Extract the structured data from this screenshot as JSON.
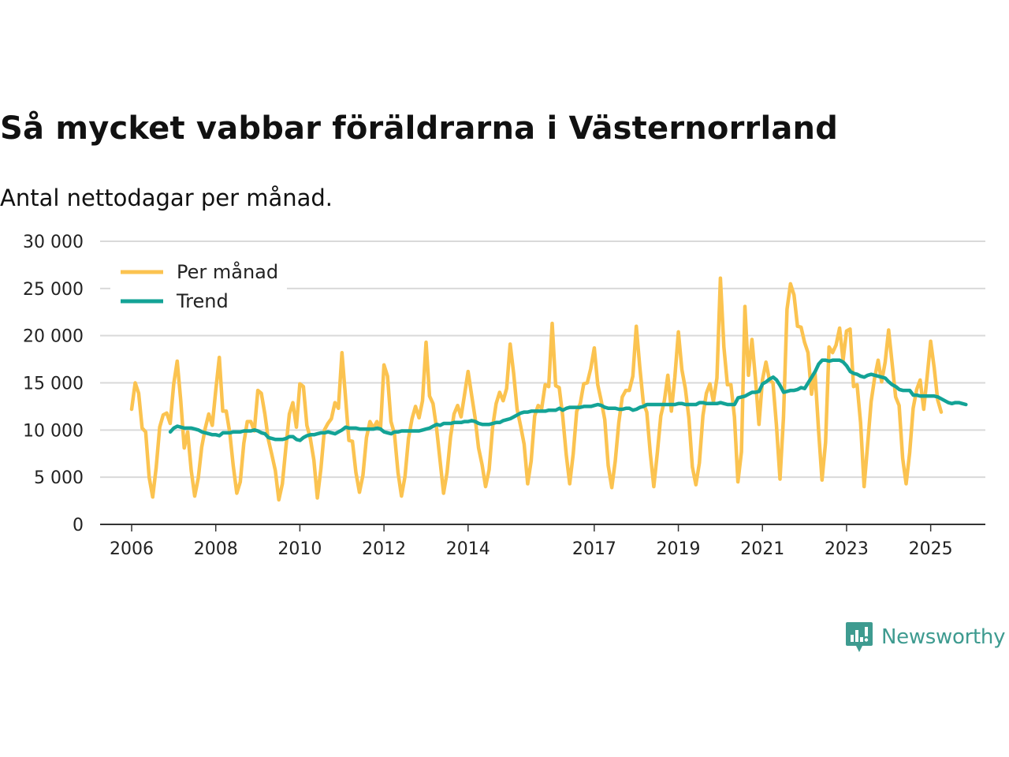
{
  "page": {
    "title": "Så mycket vabbar föräldrarna i Västernorrland",
    "subtitle": "Antal nettodagar per månad.",
    "brand": "Newsworthy"
  },
  "colors": {
    "monthly": "#fbc350",
    "trend": "#13a396",
    "grid": "#d9d9d9",
    "axis": "#333333",
    "brand": "#3e9b90"
  },
  "chart_data": {
    "type": "line",
    "title": "Så mycket vabbar föräldrarna i Västernorrland",
    "subtitle": "Antal nettodagar per månad.",
    "xlabel": "",
    "ylabel": "",
    "ylim": [
      0,
      30000
    ],
    "xlim": [
      2005.25,
      2026.3
    ],
    "yticks": [
      0,
      5000,
      10000,
      15000,
      20000,
      25000,
      30000
    ],
    "ytick_labels": [
      "0",
      "5 000",
      "10 000",
      "15 000",
      "20 000",
      "25 000",
      "30 000"
    ],
    "xticks": [
      2006,
      2008,
      2010,
      2012,
      2014,
      2017,
      2019,
      2021,
      2023,
      2025
    ],
    "xtick_labels": [
      "2006",
      "2008",
      "2010",
      "2012",
      "2014",
      "2017",
      "2019",
      "2021",
      "2023",
      "2025"
    ],
    "legend_position": "top-left",
    "series": [
      {
        "name": "Per månad",
        "start": 2006.0,
        "step_months": 1,
        "values": [
          12200,
          15000,
          13900,
          10200,
          9800,
          5000,
          2900,
          6000,
          10300,
          11600,
          11800,
          10700,
          14900,
          17300,
          13100,
          8100,
          9800,
          5700,
          3000,
          4900,
          8200,
          10200,
          11700,
          10500,
          14200,
          17700,
          12000,
          12000,
          9700,
          6200,
          3300,
          4500,
          8600,
          10900,
          10900,
          9900,
          14200,
          13900,
          11700,
          9000,
          7400,
          5700,
          2600,
          4300,
          8100,
          11700,
          12900,
          10300,
          14900,
          14600,
          10500,
          9100,
          6800,
          2800,
          5900,
          10000,
          10700,
          11200,
          12900,
          12300,
          18200,
          13600,
          8900,
          8800,
          5500,
          3400,
          5200,
          9200,
          10900,
          10200,
          10900,
          10100,
          16900,
          15700,
          10900,
          9600,
          5500,
          3000,
          5100,
          9100,
          11200,
          12500,
          11300,
          13100,
          19300,
          13600,
          12800,
          10200,
          6800,
          3300,
          5500,
          9300,
          11700,
          12600,
          11400,
          13800,
          16200,
          13700,
          11300,
          8100,
          6300,
          4000,
          5800,
          10300,
          12800,
          14000,
          13100,
          14400,
          19100,
          16000,
          12200,
          10400,
          8500,
          4300,
          6700,
          11500,
          12600,
          12300,
          14800,
          14600,
          21300,
          14700,
          14500,
          11500,
          7400,
          4300,
          7500,
          12000,
          12800,
          14900,
          15000,
          16500,
          18700,
          14800,
          13100,
          11100,
          6200,
          3900,
          6700,
          10800,
          13500,
          14200,
          14200,
          15700,
          21000,
          16700,
          12900,
          11900,
          7500,
          4000,
          7600,
          11500,
          13100,
          15800,
          12000,
          15600,
          20400,
          16400,
          14400,
          11300,
          6100,
          4200,
          6500,
          11500,
          13900,
          14900,
          13000,
          15500,
          26100,
          18800,
          14800,
          14800,
          11400,
          4500,
          7700,
          23100,
          15800,
          19600,
          15400,
          10600,
          15300,
          17200,
          15300,
          15000,
          10500,
          4800,
          11300,
          22800,
          25500,
          24300,
          21000,
          20900,
          19300,
          18200,
          13800,
          16100,
          10000,
          4700,
          8700,
          18800,
          18200,
          19000,
          20800,
          17400,
          20500,
          20700,
          14600,
          14800,
          10800,
          4000,
          8400,
          13000,
          15500,
          17400,
          15100,
          17200,
          20600,
          17100,
          13500,
          12600,
          7000,
          4300,
          7600,
          12300,
          14300,
          15300,
          12200,
          15700,
          19400,
          16600,
          13200,
          11900
        ]
      },
      {
        "name": "Trend",
        "start": 2006.92,
        "step_months": 1,
        "values": [
          9800,
          10200,
          10400,
          10300,
          10200,
          10200,
          10200,
          10100,
          10000,
          9800,
          9700,
          9600,
          9500,
          9500,
          9400,
          9700,
          9700,
          9700,
          9800,
          9800,
          9800,
          9900,
          9900,
          9900,
          10000,
          9900,
          9700,
          9600,
          9200,
          9100,
          9000,
          9000,
          9000,
          9100,
          9300,
          9300,
          9000,
          8900,
          9200,
          9400,
          9500,
          9500,
          9600,
          9700,
          9700,
          9800,
          9700,
          9600,
          9800,
          10000,
          10300,
          10200,
          10200,
          10200,
          10100,
          10100,
          10100,
          10100,
          10100,
          10200,
          10100,
          9800,
          9700,
          9600,
          9800,
          9800,
          9900,
          9900,
          9900,
          9900,
          9900,
          9900,
          10000,
          10100,
          10200,
          10400,
          10600,
          10500,
          10700,
          10700,
          10700,
          10800,
          10800,
          10800,
          10900,
          10900,
          11000,
          10900,
          10700,
          10600,
          10600,
          10600,
          10700,
          10800,
          10800,
          11000,
          11100,
          11200,
          11400,
          11600,
          11800,
          11900,
          11900,
          12000,
          12000,
          12000,
          12000,
          12000,
          12100,
          12100,
          12100,
          12300,
          12100,
          12300,
          12400,
          12400,
          12400,
          12400,
          12500,
          12500,
          12500,
          12600,
          12700,
          12600,
          12400,
          12300,
          12300,
          12300,
          12200,
          12200,
          12300,
          12300,
          12100,
          12200,
          12400,
          12500,
          12700,
          12700,
          12700,
          12700,
          12700,
          12700,
          12700,
          12700,
          12700,
          12800,
          12800,
          12700,
          12700,
          12700,
          12700,
          12900,
          12900,
          12800,
          12800,
          12800,
          12800,
          12900,
          12800,
          12700,
          12700,
          12700,
          13400,
          13500,
          13600,
          13800,
          14000,
          14000,
          14100,
          14900,
          15100,
          15400,
          15600,
          15300,
          14700,
          14000,
          14100,
          14200,
          14200,
          14300,
          14500,
          14400,
          15000,
          15600,
          16200,
          17000,
          17400,
          17400,
          17300,
          17400,
          17400,
          17400,
          17200,
          16800,
          16200,
          16000,
          15900,
          15700,
          15600,
          15800,
          15900,
          15800,
          15700,
          15600,
          15500,
          15100,
          14800,
          14600,
          14300,
          14200,
          14200,
          14200,
          13700,
          13700,
          13600,
          13600,
          13600,
          13600,
          13600,
          13500,
          13300,
          13100,
          12900,
          12800,
          12900,
          12900,
          12800,
          12700
        ]
      }
    ]
  }
}
